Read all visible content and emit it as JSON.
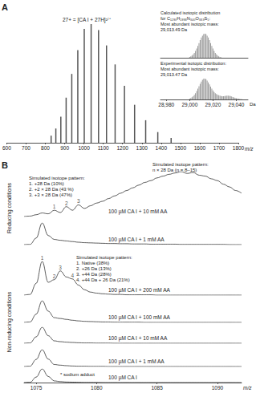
{
  "chart_data": [
    {
      "type": "bar",
      "panel_label": "A",
      "title": "27+ = [CA I + 27H]²⁷⁺",
      "x": [
        829.9,
        854.3,
        880.2,
        907.7,
        936.9,
        968.1,
        1001.5,
        1037.2,
        1075.6,
        1116.9,
        1161.5,
        1209.9,
        1262.4,
        1319.8,
        1382.6,
        1451.7
      ],
      "values": [
        6,
        12,
        22,
        38,
        58,
        78,
        96,
        100,
        95,
        82,
        66,
        48,
        32,
        19,
        9,
        4
      ],
      "color": "#555555",
      "xlim": [
        600,
        1800
      ],
      "xticks": [
        600,
        700,
        800,
        900,
        1000,
        1100,
        1200,
        1300,
        1400,
        1500,
        1600,
        1700,
        1800
      ],
      "ylim": [
        0,
        100
      ],
      "x_label": "m/z",
      "tick_labels": "x"
    },
    {
      "type": "bar",
      "x_label": "Da",
      "xlim": [
        28975,
        29050
      ],
      "xticks": [
        {
          "value": 28980,
          "label": "28,980"
        },
        {
          "value": 29000,
          "label": "29,000"
        },
        {
          "value": 29020,
          "label": "29,020"
        },
        {
          "value": 29040,
          "label": "29,040"
        }
      ],
      "ylim": [
        0,
        100
      ],
      "tick_labels": "x",
      "series": [
        {
          "name": "Calculated isotopic distribution\nfor C₁₂₉₀H₁₉₉₈N₃₄₀O₃₈₃S₅:\nMost abundant isotopic mass:\n29,013.49 Da",
          "color": "#9a9a9a",
          "x": [
            29000,
            29001,
            29002,
            29003,
            29004,
            29005,
            29006,
            29007,
            29008,
            29009,
            29010,
            29011,
            29012,
            29013,
            29014,
            29015,
            29016,
            29017,
            29018,
            29019,
            29020,
            29021,
            29022,
            29023,
            29024,
            29025,
            29026,
            29027
          ],
          "values": [
            3,
            6,
            9,
            14,
            20,
            28,
            38,
            49,
            61,
            73,
            84,
            92,
            98,
            100,
            98,
            92,
            84,
            73,
            61,
            49,
            38,
            28,
            20,
            14,
            9,
            6,
            3,
            2
          ]
        },
        {
          "name": "Experimental isotopic distribution:\nMost abundant isotopic mass:\n29,013.47 Da",
          "color": "#9a9a9a",
          "x": [
            29000,
            29001,
            29002,
            29003,
            29004,
            29005,
            29006,
            29007,
            29008,
            29009,
            29010,
            29011,
            29012,
            29013,
            29014,
            29015,
            29016,
            29017,
            29018,
            29019,
            29020,
            29021,
            29022,
            29023,
            29024,
            29025,
            29026,
            29027,
            29028,
            29029,
            29030,
            29031,
            29032,
            29033,
            29034,
            29035,
            29036,
            29037,
            29038,
            29039,
            29040,
            29041,
            29042,
            29043,
            29044,
            29045
          ],
          "values": [
            4,
            7,
            11,
            15,
            22,
            30,
            40,
            52,
            63,
            75,
            86,
            94,
            99,
            100,
            97,
            90,
            82,
            72,
            62,
            52,
            43,
            36,
            30,
            26,
            22,
            20,
            18,
            16,
            15,
            15,
            16,
            17,
            18,
            18,
            17,
            16,
            14,
            12,
            10,
            8,
            6,
            5,
            4,
            3,
            2,
            1
          ]
        }
      ]
    },
    {
      "type": "line",
      "panel_label": "B",
      "color": "#333333",
      "x": [
        1074,
        1074.5,
        1075,
        1075.5,
        1076,
        1076.5,
        1077,
        1077.5,
        1078,
        1078.5,
        1079,
        1079.5,
        1080,
        1080.5,
        1081,
        1081.5,
        1082,
        1082.5,
        1083,
        1083.5,
        1084,
        1084.5,
        1085,
        1085.5,
        1086,
        1086.5,
        1087,
        1087.5,
        1088,
        1088.5,
        1089,
        1089.5,
        1090,
        1090.5,
        1091,
        1091.5,
        1092
      ],
      "xlim": [
        1074,
        1092
      ],
      "xticks": [
        1075,
        1080,
        1085,
        1090
      ],
      "ylim": [
        0,
        100
      ],
      "x_label": "m/z",
      "tick_labels": "x",
      "series": [
        {
          "name": "100 µM CA I + 10 mM AA",
          "condition": "Reducing conditions",
          "values": [
            0,
            1,
            4,
            8,
            6,
            14,
            9,
            22,
            14,
            26,
            18,
            24,
            30,
            34,
            40,
            46,
            52,
            58,
            64,
            70,
            76,
            80,
            86,
            90,
            94,
            97,
            100,
            96,
            98,
            92,
            90,
            84,
            80,
            72,
            66,
            58,
            52
          ],
          "annotations": [
            "Simulated isotope pattern:\n1. +28 Da (10%)\n2. +2 × 28 Da (43 %)\n3. +3 × 28 Da (47%)",
            "Simulated isotope pattern:\nn × 28 Da (n = 8–15)"
          ],
          "peak_labels": [
            {
              "x": 1076.5,
              "label": "1"
            },
            {
              "x": 1077.5,
              "label": "2"
            },
            {
              "x": 1078.5,
              "label": "3"
            }
          ]
        },
        {
          "name": "100 µM CA I + 1 mM AA",
          "condition": "Reducing conditions",
          "values": [
            0,
            1,
            30,
            100,
            42,
            24,
            20,
            17,
            14,
            11,
            9,
            8,
            7,
            6,
            5,
            5,
            4,
            4,
            3,
            3,
            3,
            2,
            2,
            2,
            2,
            2,
            1,
            1,
            1,
            1,
            1,
            1,
            1,
            1,
            0,
            0,
            0
          ]
        },
        {
          "name": "100 µM CA I + 200 mM AA",
          "condition": "Non-reducing conditions",
          "values": [
            0,
            2,
            35,
            100,
            38,
            46,
            72,
            54,
            48,
            30,
            16,
            9,
            6,
            4,
            3,
            2,
            2,
            1,
            1,
            1,
            1,
            1,
            0,
            0,
            0,
            0,
            0,
            0,
            0,
            0,
            0,
            0,
            0,
            0,
            0,
            0,
            0
          ],
          "annotations": [
            "Simulated isotope pattern:\n1. Native (38%)\n2. +26 Da (13%)\n3. +44 Da (28%)\n4. +44 Da + 26 Da (21%)"
          ],
          "peak_labels": [
            {
              "x": 1075.5,
              "label": "1"
            },
            {
              "x": 1076.5,
              "label": "2"
            },
            {
              "x": 1077,
              "label": "3"
            },
            {
              "x": 1078,
              "label": "4"
            }
          ]
        },
        {
          "name": "100 µM CA I + 100 mM AA",
          "condition": "Non-reducing conditions",
          "values": [
            0,
            2,
            38,
            100,
            52,
            22,
            18,
            14,
            10,
            7,
            5,
            4,
            3,
            2,
            2,
            1,
            1,
            1,
            1,
            1,
            0,
            0,
            0,
            0,
            0,
            0,
            0,
            0,
            0,
            0,
            0,
            0,
            0,
            0,
            0,
            0,
            0
          ]
        },
        {
          "name": "100 µM CA I + 10 mM AA",
          "condition": "Non-reducing conditions",
          "values": [
            0,
            2,
            40,
            100,
            47,
            15,
            10,
            7,
            5,
            3,
            2,
            2,
            1,
            1,
            1,
            0,
            0,
            0,
            0,
            0,
            0,
            0,
            0,
            0,
            0,
            0,
            0,
            0,
            0,
            0,
            0,
            0,
            0,
            0,
            0,
            0,
            0
          ]
        },
        {
          "name": "100 µM CA I + 1 mM AA",
          "condition": "Non-reducing conditions",
          "values": [
            0,
            2,
            42,
            100,
            44,
            12,
            8,
            5,
            3,
            2,
            2,
            1,
            1,
            1,
            0,
            0,
            0,
            0,
            0,
            0,
            0,
            0,
            0,
            0,
            0,
            0,
            0,
            0,
            0,
            0,
            0,
            0,
            0,
            0,
            0,
            0,
            0
          ]
        },
        {
          "name": "100 µM CA I",
          "condition": "Non-reducing conditions",
          "values": [
            0,
            2,
            40,
            100,
            45,
            12,
            7,
            4,
            3,
            2,
            1,
            1,
            1,
            0,
            0,
            0,
            0,
            0,
            0,
            0,
            0,
            0,
            0,
            0,
            0,
            0,
            0,
            0,
            0,
            0,
            0,
            0,
            0,
            0,
            0,
            0,
            0
          ],
          "annotations": [
            "* sodium adduct"
          ]
        }
      ]
    }
  ]
}
